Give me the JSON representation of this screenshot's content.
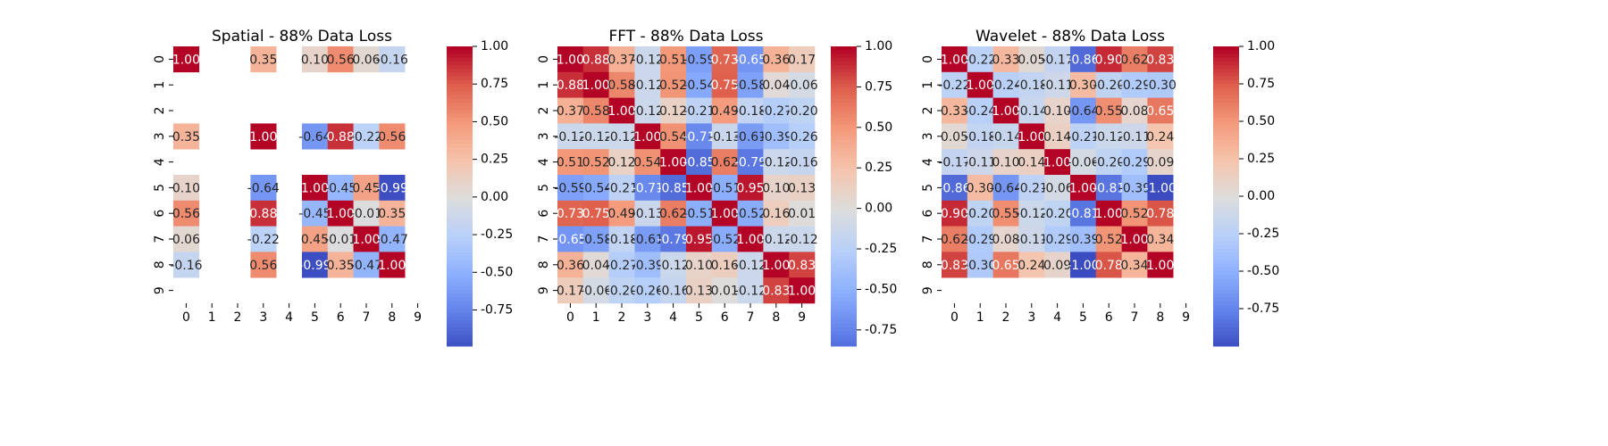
{
  "colors": {
    "text": "#000000",
    "background": "#ffffff",
    "colormap": "coolwarm"
  },
  "chart_data": [
    {
      "type": "heatmap",
      "title": "Spatial - 88% Data Loss",
      "x_labels": [
        "0",
        "1",
        "2",
        "3",
        "4",
        "5",
        "6",
        "7",
        "8",
        "9"
      ],
      "y_labels": [
        "0",
        "1",
        "2",
        "3",
        "4",
        "5",
        "6",
        "7",
        "8",
        "9"
      ],
      "color_range": [
        -1.0,
        1.0
      ],
      "colorbar_ticks": [
        "1.00",
        "0.75",
        "0.50",
        "0.25",
        "0.00",
        "-0.25",
        "-0.50",
        "-0.75"
      ],
      "colorbar_tick_values": [
        1.0,
        0.75,
        0.5,
        0.25,
        0.0,
        -0.25,
        -0.5,
        -0.75
      ],
      "colorbar_range": [
        -0.99,
        1.0
      ],
      "matrix": [
        [
          1.0,
          null,
          null,
          0.35,
          null,
          0.1,
          0.56,
          0.06,
          -0.16,
          null
        ],
        [
          null,
          null,
          null,
          null,
          null,
          null,
          null,
          null,
          null,
          null
        ],
        [
          null,
          null,
          null,
          null,
          null,
          null,
          null,
          null,
          null,
          null
        ],
        [
          0.35,
          null,
          null,
          1.0,
          null,
          -0.64,
          0.88,
          -0.22,
          0.56,
          null
        ],
        [
          null,
          null,
          null,
          null,
          null,
          null,
          null,
          null,
          null,
          null
        ],
        [
          0.1,
          null,
          null,
          -0.64,
          null,
          1.0,
          -0.45,
          0.45,
          -0.99,
          null
        ],
        [
          0.56,
          null,
          null,
          0.88,
          null,
          -0.45,
          1.0,
          -0.01,
          0.35,
          null
        ],
        [
          0.06,
          null,
          null,
          -0.22,
          null,
          0.45,
          -0.01,
          1.0,
          -0.47,
          null
        ],
        [
          -0.16,
          null,
          null,
          0.56,
          null,
          -0.99,
          0.35,
          -0.47,
          1.0,
          null
        ],
        [
          null,
          null,
          null,
          null,
          null,
          null,
          null,
          null,
          null,
          null
        ]
      ],
      "cell_labels": [
        [
          "1.00",
          "",
          "",
          "0.35",
          "",
          "0.10",
          "0.56",
          "0.06",
          "-0.16",
          ""
        ],
        [
          "",
          "",
          "",
          "",
          "",
          "",
          "",
          "",
          "",
          ""
        ],
        [
          "",
          "",
          "",
          "",
          "",
          "",
          "",
          "",
          "",
          ""
        ],
        [
          "0.35",
          "",
          "",
          "1.00",
          "",
          "-0.64",
          "0.88",
          "-0.22",
          "0.56",
          ""
        ],
        [
          "",
          "",
          "",
          "",
          "",
          "",
          "",
          "",
          "",
          ""
        ],
        [
          "0.10",
          "",
          "",
          "-0.64",
          "",
          "1.00",
          "-0.45",
          "0.45",
          "-0.99",
          ""
        ],
        [
          "0.56",
          "",
          "",
          "0.88",
          "",
          "-0.45",
          "1.00",
          "-0.01",
          "0.35",
          ""
        ],
        [
          "0.06",
          "",
          "",
          "-0.22",
          "",
          "0.45",
          "-0.01",
          "1.00",
          "-0.47",
          ""
        ],
        [
          "-0.16",
          "",
          "",
          "0.56",
          "",
          "-0.99",
          "0.35",
          "-0.47",
          "1.00",
          ""
        ],
        [
          "",
          "",
          "",
          "",
          "",
          "",
          "",
          "",
          "",
          ""
        ]
      ]
    },
    {
      "type": "heatmap",
      "title": "FFT - 88% Data Loss",
      "x_labels": [
        "0",
        "1",
        "2",
        "3",
        "4",
        "5",
        "6",
        "7",
        "8",
        "9"
      ],
      "y_labels": [
        "0",
        "1",
        "2",
        "3",
        "4",
        "5",
        "6",
        "7",
        "8",
        "9"
      ],
      "color_range": [
        -1.0,
        1.0
      ],
      "colorbar_ticks": [
        "1.00",
        "0.75",
        "0.50",
        "0.25",
        "0.00",
        "-0.25",
        "-0.50",
        "-0.75"
      ],
      "colorbar_tick_values": [
        1.0,
        0.75,
        0.5,
        0.25,
        0.0,
        -0.25,
        -0.5,
        -0.75
      ],
      "colorbar_range": [
        -0.85,
        1.0
      ],
      "matrix": [
        [
          1.0,
          0.88,
          0.37,
          -0.12,
          0.51,
          -0.59,
          0.73,
          -0.65,
          0.36,
          0.17
        ],
        [
          0.88,
          1.0,
          0.58,
          -0.12,
          0.52,
          -0.54,
          0.75,
          -0.58,
          0.04,
          -0.06
        ],
        [
          0.37,
          0.58,
          1.0,
          -0.12,
          0.12,
          -0.21,
          0.49,
          -0.18,
          -0.27,
          -0.2
        ],
        [
          -0.12,
          -0.12,
          -0.12,
          1.0,
          0.54,
          -0.71,
          -0.13,
          -0.61,
          -0.39,
          -0.26
        ],
        [
          0.51,
          0.52,
          0.12,
          0.54,
          1.0,
          -0.85,
          0.62,
          -0.79,
          -0.12,
          -0.16
        ],
        [
          -0.59,
          -0.54,
          -0.21,
          -0.71,
          -0.85,
          1.0,
          -0.51,
          0.95,
          0.1,
          0.13
        ],
        [
          0.73,
          0.75,
          0.49,
          -0.13,
          0.62,
          -0.51,
          1.0,
          -0.52,
          0.16,
          0.01
        ],
        [
          -0.65,
          -0.58,
          -0.18,
          -0.61,
          -0.79,
          0.95,
          -0.52,
          1.0,
          -0.12,
          -0.12
        ],
        [
          0.36,
          0.04,
          -0.27,
          -0.39,
          -0.12,
          0.1,
          0.16,
          -0.12,
          1.0,
          0.83
        ],
        [
          0.17,
          -0.06,
          -0.2,
          -0.26,
          -0.16,
          0.13,
          0.01,
          -0.12,
          0.83,
          1.0
        ]
      ],
      "cell_labels": [
        [
          "1.00",
          "0.88",
          "0.37",
          "-0.12",
          "0.51",
          "-0.59",
          "0.73",
          "-0.65",
          "0.36",
          "0.17"
        ],
        [
          "0.88",
          "1.00",
          "0.58",
          "-0.12",
          "0.52",
          "-0.54",
          "0.75",
          "-0.58",
          "0.04",
          "-0.06"
        ],
        [
          "0.37",
          "0.58",
          "1.00",
          "-0.12",
          "0.12",
          "-0.21",
          "0.49",
          "-0.18",
          "-0.27",
          "-0.20"
        ],
        [
          "-0.12",
          "-0.12",
          "-0.12",
          "1.00",
          "0.54",
          "-0.71",
          "-0.13",
          "-0.61",
          "-0.39",
          "-0.26"
        ],
        [
          "0.51",
          "0.52",
          "0.12",
          "0.54",
          "1.00",
          "-0.85",
          "0.62",
          "-0.79",
          "-0.12",
          "-0.16"
        ],
        [
          "-0.59",
          "-0.54",
          "-0.21",
          "-0.71",
          "-0.85",
          "1.00",
          "-0.51",
          "0.95",
          "0.10",
          "0.13"
        ],
        [
          "0.73",
          "0.75",
          "0.49",
          "-0.13",
          "0.62",
          "-0.51",
          "1.00",
          "-0.52",
          "0.16",
          "0.01"
        ],
        [
          "-0.65",
          "-0.58",
          "-0.18",
          "-0.61",
          "-0.79",
          "0.95",
          "-0.52",
          "1.00",
          "-0.12",
          "-0.12"
        ],
        [
          "0.36",
          "0.04",
          "-0.27",
          "-0.39",
          "-0.12",
          "0.10",
          "0.16",
          "-0.12",
          "1.00",
          "0.83"
        ],
        [
          "0.17",
          "-0.06",
          "-0.20",
          "-0.26",
          "-0.16",
          "0.13",
          "0.01",
          "-0.12",
          "0.83",
          "1.00"
        ]
      ]
    },
    {
      "type": "heatmap",
      "title": "Wavelet - 88% Data Loss",
      "x_labels": [
        "0",
        "1",
        "2",
        "3",
        "4",
        "5",
        "6",
        "7",
        "8",
        "9"
      ],
      "y_labels": [
        "0",
        "1",
        "2",
        "3",
        "4",
        "5",
        "6",
        "7",
        "8",
        "9"
      ],
      "color_range": [
        -1.0,
        1.0
      ],
      "colorbar_ticks": [
        "1.00",
        "0.75",
        "0.50",
        "0.25",
        "0.00",
        "-0.25",
        "-0.50",
        "-0.75"
      ],
      "colorbar_tick_values": [
        1.0,
        0.75,
        0.5,
        0.25,
        0.0,
        -0.25,
        -0.5,
        -0.75
      ],
      "colorbar_range": [
        -1.0,
        1.0
      ],
      "matrix": [
        [
          1.0,
          -0.22,
          0.33,
          0.05,
          -0.17,
          -0.86,
          0.9,
          0.62,
          0.83,
          null
        ],
        [
          -0.22,
          1.0,
          -0.24,
          -0.18,
          -0.11,
          0.3,
          -0.2,
          -0.29,
          -0.3,
          null
        ],
        [
          0.33,
          -0.24,
          1.0,
          -0.14,
          0.1,
          -0.64,
          0.55,
          0.08,
          0.65,
          null
        ],
        [
          0.05,
          -0.18,
          -0.14,
          1.0,
          0.14,
          -0.21,
          -0.12,
          -0.11,
          0.24,
          null
        ],
        [
          -0.17,
          -0.11,
          0.1,
          0.14,
          1.0,
          -0.06,
          -0.2,
          -0.29,
          0.09,
          null
        ],
        [
          -0.86,
          0.3,
          -0.64,
          -0.21,
          -0.06,
          1.0,
          -0.81,
          -0.39,
          -1.0,
          null
        ],
        [
          0.9,
          -0.2,
          0.55,
          -0.12,
          -0.2,
          -0.81,
          1.0,
          0.52,
          0.78,
          null
        ],
        [
          0.62,
          -0.29,
          0.08,
          -0.11,
          -0.29,
          -0.39,
          0.52,
          1.0,
          0.34,
          null
        ],
        [
          0.83,
          -0.3,
          0.65,
          0.24,
          0.09,
          -1.0,
          0.78,
          0.34,
          1.0,
          null
        ],
        [
          null,
          null,
          null,
          null,
          null,
          null,
          null,
          null,
          null,
          null
        ]
      ],
      "cell_labels": [
        [
          "1.00",
          "-0.22",
          "0.33",
          "0.05",
          "-0.17",
          "-0.86",
          "0.90",
          "0.62",
          "0.83",
          ""
        ],
        [
          "-0.22",
          "1.00",
          "-0.24",
          "-0.18",
          "-0.11",
          "0.30",
          "-0.20",
          "-0.29",
          "-0.30",
          ""
        ],
        [
          "0.33",
          "-0.24",
          "1.00",
          "-0.14",
          "0.10",
          "-0.64",
          "0.55",
          "0.08",
          "0.65",
          ""
        ],
        [
          "0.05",
          "-0.18",
          "-0.14",
          "1.00",
          "0.14",
          "-0.21",
          "-0.12",
          "-0.11",
          "0.24",
          ""
        ],
        [
          "-0.17",
          "-0.11",
          "0.10",
          "0.14",
          "1.00",
          "-0.06",
          "-0.20",
          "-0.29",
          "0.09",
          ""
        ],
        [
          "-0.86",
          "0.30",
          "-0.64",
          "-0.21",
          "-0.06",
          "1.00",
          "-0.81",
          "-0.39",
          "-1.00",
          ""
        ],
        [
          "0.90",
          "-0.20",
          "0.55",
          "-0.12",
          "-0.20",
          "-0.81",
          "1.00",
          "0.52",
          "0.78",
          ""
        ],
        [
          "0.62",
          "-0.29",
          "0.08",
          "-0.11",
          "-0.29",
          "-0.39",
          "0.52",
          "1.00",
          "0.34",
          ""
        ],
        [
          "0.83",
          "-0.30",
          "0.65",
          "0.24",
          "0.09",
          "-1.00",
          "0.78",
          "0.34",
          "1.00",
          ""
        ],
        [
          "",
          "",
          "",
          "",
          "",
          "",
          "",
          "",
          "",
          ""
        ]
      ]
    }
  ]
}
